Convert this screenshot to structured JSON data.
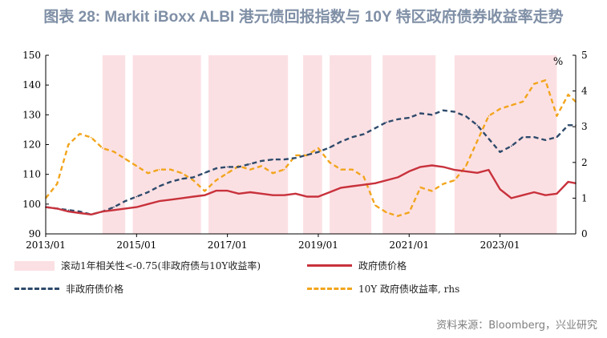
{
  "title": "图表 28: Markit iBoxx ALBI  港元债回报指数与 10Y 特区政府债券收益率走势",
  "source": "资料来源：Bloomberg，兴业研究",
  "colors": {
    "shade": "#fbe0e3",
    "gov_price": "#c8323c",
    "nongov_price": "#2e4a6b",
    "yield_10y": "#f2a51d"
  },
  "chart_data": {
    "type": "line",
    "x_tick_labels": [
      "2013/01",
      "2015/01",
      "2017/01",
      "2019/01",
      "2021/01",
      "2023/01"
    ],
    "x_range": [
      "2013-01",
      "2024-09"
    ],
    "left_axis": {
      "ticks": [
        "90",
        "100",
        "110",
        "120",
        "130",
        "140",
        "150"
      ],
      "ylim": [
        90,
        150
      ]
    },
    "right_axis": {
      "label": "%",
      "ticks": [
        "0",
        "1",
        "2",
        "3",
        "4",
        "5"
      ],
      "ylim": [
        0,
        5
      ]
    },
    "grid": false,
    "legend_placement": "bottom",
    "shaded_periods": [
      [
        "2014-04",
        "2014-10"
      ],
      [
        "2014-12",
        "2016-06"
      ],
      [
        "2016-08",
        "2018-05"
      ],
      [
        "2018-09",
        "2019-02"
      ],
      [
        "2019-04",
        "2020-03"
      ],
      [
        "2020-06",
        "2021-08"
      ],
      [
        "2022-01",
        "2024-04"
      ]
    ],
    "series": [
      {
        "name": "政府债价格",
        "axis": "left",
        "x": [
          "2013-01",
          "2013-04",
          "2013-07",
          "2013-10",
          "2014-01",
          "2014-04",
          "2014-07",
          "2014-10",
          "2015-01",
          "2015-04",
          "2015-07",
          "2015-10",
          "2016-01",
          "2016-04",
          "2016-07",
          "2016-10",
          "2017-01",
          "2017-04",
          "2017-07",
          "2017-10",
          "2018-01",
          "2018-04",
          "2018-07",
          "2018-10",
          "2019-01",
          "2019-04",
          "2019-07",
          "2019-10",
          "2020-01",
          "2020-04",
          "2020-07",
          "2020-10",
          "2021-01",
          "2021-04",
          "2021-07",
          "2021-10",
          "2022-01",
          "2022-04",
          "2022-07",
          "2022-10",
          "2023-01",
          "2023-04",
          "2023-07",
          "2023-10",
          "2024-01",
          "2024-04",
          "2024-07",
          "2024-09"
        ],
        "values": [
          99,
          98.5,
          97.5,
          97,
          96.5,
          97.5,
          98,
          98.5,
          99,
          100,
          101,
          101.5,
          102,
          102.5,
          103,
          104.5,
          104.5,
          103.5,
          104,
          103.5,
          103,
          103,
          103.5,
          102.5,
          102.5,
          104,
          105.5,
          106,
          106.5,
          107,
          108,
          109,
          111,
          112.5,
          113,
          112.5,
          111.5,
          111,
          110.5,
          111.5,
          105,
          102,
          103,
          104,
          103,
          103.5,
          107.5,
          107
        ]
      },
      {
        "name": "非政府债价格",
        "axis": "left",
        "x": [
          "2013-01",
          "2013-04",
          "2013-07",
          "2013-10",
          "2014-01",
          "2014-04",
          "2014-07",
          "2014-10",
          "2015-01",
          "2015-04",
          "2015-07",
          "2015-10",
          "2016-01",
          "2016-04",
          "2016-07",
          "2016-10",
          "2017-01",
          "2017-04",
          "2017-07",
          "2017-10",
          "2018-01",
          "2018-04",
          "2018-07",
          "2018-10",
          "2019-01",
          "2019-04",
          "2019-07",
          "2019-10",
          "2020-01",
          "2020-04",
          "2020-07",
          "2020-10",
          "2021-01",
          "2021-04",
          "2021-07",
          "2021-10",
          "2022-01",
          "2022-04",
          "2022-07",
          "2022-10",
          "2023-01",
          "2023-04",
          "2023-07",
          "2023-10",
          "2024-01",
          "2024-04",
          "2024-07",
          "2024-09"
        ],
        "values": [
          99,
          98.5,
          98,
          97.5,
          96.5,
          97.5,
          99,
          101,
          102.5,
          104,
          106,
          107.5,
          108.5,
          109,
          110.5,
          112,
          112.5,
          112.5,
          113.5,
          114.5,
          115,
          115,
          115.5,
          116.5,
          117.5,
          119,
          121,
          122.5,
          123.5,
          125.5,
          127.5,
          128.5,
          129,
          130.5,
          130,
          131.5,
          131,
          129.5,
          126.5,
          122,
          117.5,
          119.5,
          122.5,
          122.5,
          121.5,
          122.5,
          126.5,
          126.5
        ]
      },
      {
        "name": "10Y 政府债收益率, rhs",
        "axis": "right",
        "x": [
          "2013-01",
          "2013-04",
          "2013-07",
          "2013-10",
          "2014-01",
          "2014-04",
          "2014-07",
          "2014-10",
          "2015-01",
          "2015-04",
          "2015-07",
          "2015-10",
          "2016-01",
          "2016-04",
          "2016-07",
          "2016-10",
          "2017-01",
          "2017-04",
          "2017-07",
          "2017-10",
          "2018-01",
          "2018-04",
          "2018-07",
          "2018-10",
          "2019-01",
          "2019-04",
          "2019-07",
          "2019-10",
          "2020-01",
          "2020-04",
          "2020-07",
          "2020-10",
          "2021-01",
          "2021-04",
          "2021-07",
          "2021-10",
          "2022-01",
          "2022-04",
          "2022-07",
          "2022-10",
          "2023-01",
          "2023-04",
          "2023-07",
          "2023-10",
          "2024-01",
          "2024-04",
          "2024-07",
          "2024-09"
        ],
        "values": [
          1.0,
          1.4,
          2.5,
          2.8,
          2.7,
          2.4,
          2.3,
          2.1,
          1.9,
          1.7,
          1.8,
          1.8,
          1.7,
          1.5,
          1.2,
          1.5,
          1.7,
          1.9,
          1.8,
          1.9,
          1.7,
          1.8,
          2.2,
          2.2,
          2.4,
          2.0,
          1.8,
          1.8,
          1.6,
          0.8,
          0.6,
          0.5,
          0.6,
          1.3,
          1.2,
          1.4,
          1.5,
          1.9,
          2.6,
          3.3,
          3.5,
          3.6,
          3.7,
          4.2,
          4.3,
          3.3,
          3.9,
          3.7
        ]
      }
    ]
  },
  "legend": [
    {
      "label": "滚动1年相关性<-0.75(非政府债与10Y收益率)",
      "kind": "box",
      "color_key": "shade"
    },
    {
      "label": "政府债价格",
      "kind": "line",
      "color_key": "gov_price"
    },
    {
      "label": "非政府债价格",
      "kind": "dash",
      "color_key": "nongov_price"
    },
    {
      "label": "10Y 政府债收益率, rhs",
      "kind": "dash",
      "color_key": "yield_10y"
    }
  ]
}
